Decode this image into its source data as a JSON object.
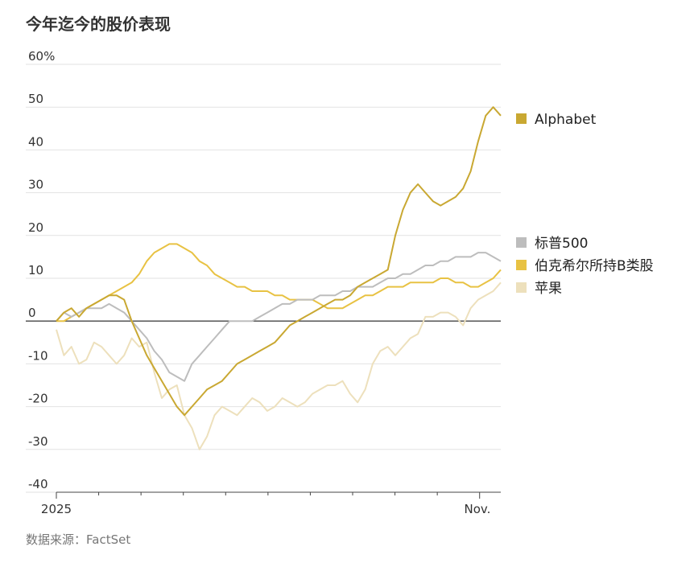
{
  "title": "今年迄今的股价表现",
  "source": "数据来源：FactSet",
  "chart_data": {
    "type": "line",
    "ylim": [
      -40,
      60
    ],
    "ytick_values": [
      -40,
      -30,
      -20,
      -10,
      0,
      10,
      20,
      30,
      40,
      50,
      60
    ],
    "ytick_labels": [
      "-40",
      "-30",
      "-20",
      "-10",
      "0",
      "10",
      "20",
      "30",
      "40",
      "50",
      "60%"
    ],
    "x_tick_labels": [
      {
        "label": "2025",
        "pos": 0
      },
      {
        "label": "Nov.",
        "pos": 0.9
      }
    ],
    "x_count": 60,
    "series": [
      {
        "name": "苹果",
        "color": "#EDE0BC",
        "end_label_offset": 0,
        "values": [
          -2,
          -8,
          -6,
          -10,
          -9,
          -5,
          -6,
          -8,
          -10,
          -8,
          -4,
          -6,
          -5,
          -12,
          -18,
          -16,
          -15,
          -22,
          -25,
          -30,
          -27,
          -22,
          -20,
          -21,
          -22,
          -20,
          -18,
          -19,
          -21,
          -20,
          -18,
          -19,
          -20,
          -19,
          -17,
          -16,
          -15,
          -15,
          -14,
          -17,
          -19,
          -16,
          -10,
          -7,
          -6,
          -8,
          -6,
          -4,
          -3,
          1,
          1,
          2,
          2,
          1,
          -1,
          3,
          5,
          6,
          7,
          9
        ]
      },
      {
        "name": "伯克希尔所持B类股",
        "color": "#E8C243",
        "end_label_offset": 0,
        "values": [
          0,
          0,
          1,
          2,
          3,
          4,
          5,
          6,
          7,
          8,
          9,
          11,
          14,
          16,
          17,
          18,
          18,
          17,
          16,
          14,
          13,
          11,
          10,
          9,
          8,
          8,
          7,
          7,
          7,
          6,
          6,
          5,
          5,
          5,
          5,
          4,
          3,
          3,
          3,
          4,
          5,
          6,
          6,
          7,
          8,
          8,
          8,
          9,
          9,
          9,
          9,
          10,
          10,
          9,
          9,
          8,
          8,
          9,
          10,
          12
        ]
      },
      {
        "name": "标普500",
        "color": "#BDBDBD",
        "end_label_offset": 0,
        "values": [
          0,
          2,
          1,
          2,
          3,
          3,
          3,
          4,
          3,
          2,
          0,
          -2,
          -4,
          -7,
          -9,
          -12,
          -13,
          -14,
          -10,
          -8,
          -6,
          -4,
          -2,
          0,
          0,
          0,
          0,
          1,
          2,
          3,
          4,
          4,
          5,
          5,
          5,
          6,
          6,
          6,
          7,
          7,
          8,
          8,
          8,
          9,
          10,
          10,
          11,
          11,
          12,
          13,
          13,
          14,
          14,
          15,
          15,
          15,
          16,
          16,
          15,
          14
        ]
      },
      {
        "name": "Alphabet",
        "color": "#C9A832",
        "end_label_offset": 0,
        "values": [
          0,
          2,
          3,
          1,
          3,
          4,
          5,
          6,
          6,
          5,
          0,
          -4,
          -8,
          -11,
          -14,
          -17,
          -20,
          -22,
          -20,
          -18,
          -16,
          -15,
          -14,
          -12,
          -10,
          -9,
          -8,
          -7,
          -6,
          -5,
          -3,
          -1,
          0,
          1,
          2,
          3,
          4,
          5,
          5,
          6,
          8,
          9,
          10,
          11,
          12,
          20,
          26,
          30,
          32,
          30,
          28,
          27,
          28,
          29,
          31,
          35,
          42,
          48,
          50,
          48
        ]
      }
    ]
  }
}
